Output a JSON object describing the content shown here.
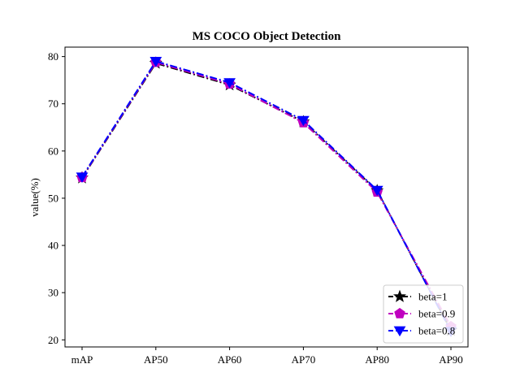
{
  "chart_data": {
    "type": "line",
    "title": "MS COCO Object Detection",
    "xlabel": "",
    "ylabel": "value(%)",
    "categories": [
      "mAP",
      "AP50",
      "AP60",
      "AP70",
      "AP80",
      "AP90"
    ],
    "ylim": [
      18.5,
      82
    ],
    "yticks": [
      20,
      30,
      40,
      50,
      60,
      70,
      80
    ],
    "grid": false,
    "legend_position": "lower-right",
    "series": [
      {
        "name": "beta=1",
        "values": [
          54.3,
          78.6,
          74.0,
          66.2,
          51.6,
          22.0
        ],
        "color": "#000000",
        "marker": "star"
      },
      {
        "name": "beta=0.9",
        "values": [
          54.4,
          78.8,
          74.2,
          66.0,
          51.3,
          22.8
        ],
        "color": "#bf00bf",
        "marker": "pentagon"
      },
      {
        "name": "beta=0.8",
        "values": [
          54.5,
          79.0,
          74.5,
          66.5,
          51.7,
          21.8
        ],
        "color": "#0000ff",
        "marker": "triangle-down"
      }
    ]
  }
}
